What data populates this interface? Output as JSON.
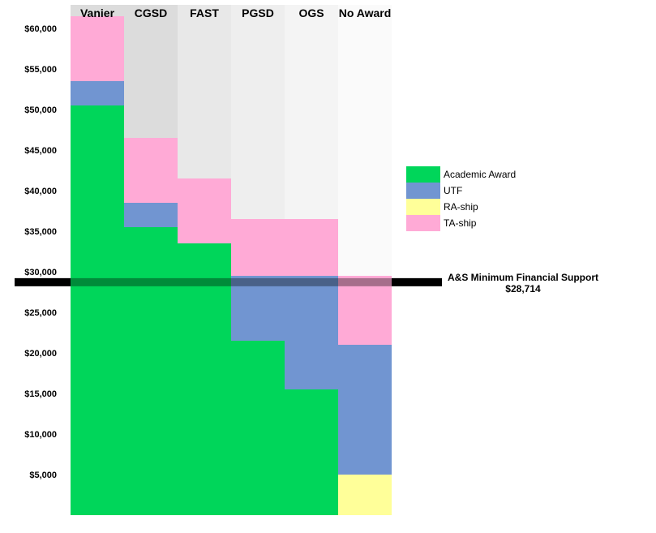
{
  "chart_data": {
    "type": "bar",
    "stacked": true,
    "categories": [
      "Vanier",
      "CGSD",
      "FAST",
      "PGSD",
      "OGS",
      "No Award"
    ],
    "series": [
      {
        "name": "Academic Award",
        "color": "#00d65a",
        "values": [
          50500,
          35500,
          33500,
          21500,
          15500,
          0
        ]
      },
      {
        "name": "RA-ship",
        "color": "#ffff99",
        "values": [
          0,
          0,
          0,
          0,
          0,
          5000
        ]
      },
      {
        "name": "UTF",
        "color": "#7195d1",
        "values": [
          3000,
          3000,
          0,
          8000,
          14000,
          16000
        ]
      },
      {
        "name": "TA-ship",
        "color": "#ffaad6",
        "values": [
          8000,
          8000,
          8000,
          7000,
          7000,
          8500
        ]
      }
    ],
    "legend_order": [
      "Academic Award",
      "UTF",
      "RA-ship",
      "TA-ship"
    ],
    "column_backgrounds": [
      "#dcdcdc",
      "#dcdcdc",
      "#e8e8e8",
      "#eeeeee",
      "#f4f4f4",
      "#fafafa"
    ],
    "yticks": [
      5000,
      10000,
      15000,
      20000,
      25000,
      30000,
      35000,
      40000,
      45000,
      50000,
      55000,
      60000
    ],
    "ytick_labels": [
      "$5,000",
      "$10,000",
      "$15,000",
      "$20,000",
      "$25,000",
      "$30,000",
      "$35,000",
      "$40,000",
      "$45,000",
      "$50,000",
      "$55,000",
      "$60,000"
    ],
    "ylim": [
      0,
      62000
    ],
    "legend_position": "right",
    "reference_line": {
      "value": 28714,
      "label": "A&S Minimum Financial Support",
      "value_label": "$28,714",
      "color": "#000000"
    }
  }
}
